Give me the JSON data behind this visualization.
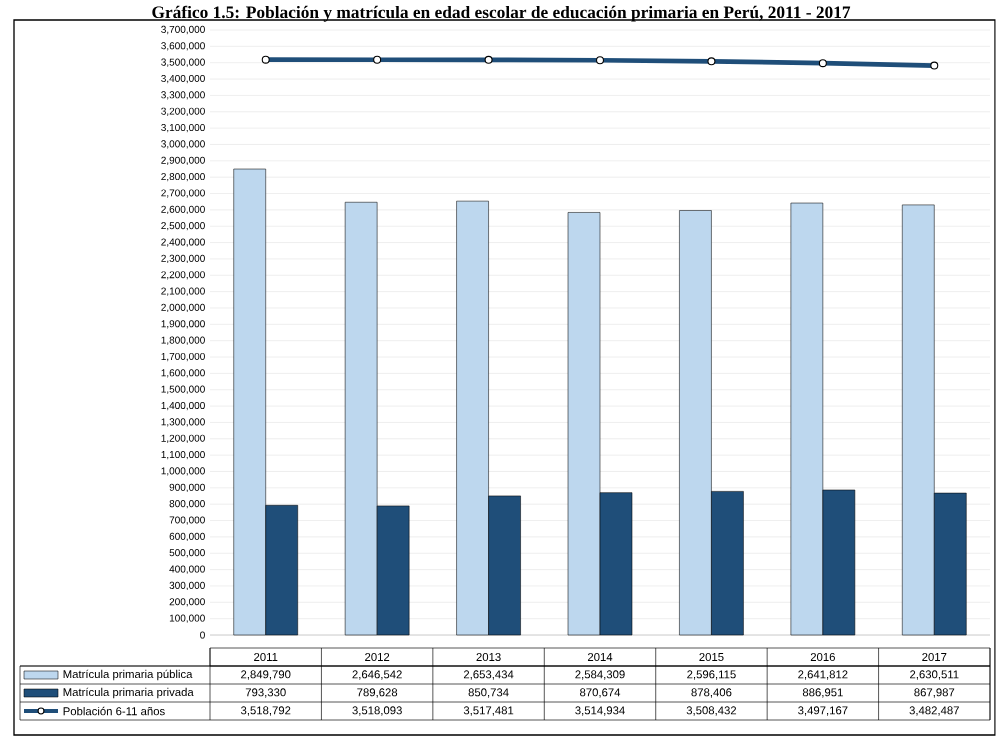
{
  "chart_data": {
    "type": "bar",
    "title": "Gráfico 1.5: Población y matrícula en edad escolar de educación primaria en Perú, 2011 - 2017",
    "categories": [
      "2011",
      "2012",
      "2013",
      "2014",
      "2015",
      "2016",
      "2017"
    ],
    "series": [
      {
        "name": "Matrícula primaria pública",
        "color": "#bdd7ee",
        "values": [
          2849790,
          2646542,
          2653434,
          2584309,
          2596115,
          2641812,
          2630511
        ],
        "value_labels": [
          "2,849,790",
          "2,646,542",
          "2,653,434",
          "2,584,309",
          "2,596,115",
          "2,641,812",
          "2,630,511"
        ]
      },
      {
        "name": "Matrícula primaria privada",
        "color": "#1f4e79",
        "values": [
          793330,
          789628,
          850734,
          870674,
          878406,
          886951,
          867987
        ],
        "value_labels": [
          "793,330",
          "789,628",
          "850,734",
          "870,674",
          "878,406",
          "886,951",
          "867,987"
        ]
      },
      {
        "name": "Población  6-11 años",
        "type": "line",
        "color": "#1f4e79",
        "marker": "circle",
        "line_style": "solid",
        "values": [
          3518792,
          3518093,
          3517481,
          3514934,
          3508432,
          3497167,
          3482487
        ],
        "value_labels": [
          "3,518,792",
          "3,518,093",
          "3,517,481",
          "3,514,934",
          "3,508,432",
          "3,497,167",
          "3,482,487"
        ]
      }
    ],
    "ylim": [
      0,
      3700000
    ],
    "yticks": [
      {
        "value": 0,
        "label": "0"
      },
      {
        "value": 100000,
        "label": "100,000"
      },
      {
        "value": 200000,
        "label": "200,000"
      },
      {
        "value": 300000,
        "label": "300,000"
      },
      {
        "value": 400000,
        "label": "400,000"
      },
      {
        "value": 500000,
        "label": "500,000"
      },
      {
        "value": 600000,
        "label": "600,000"
      },
      {
        "value": 700000,
        "label": "700,000"
      },
      {
        "value": 800000,
        "label": "800,000"
      },
      {
        "value": 900000,
        "label": "900,000"
      },
      {
        "value": 1000000,
        "label": "1,000,000"
      },
      {
        "value": 1100000,
        "label": "1,100,000"
      },
      {
        "value": 1200000,
        "label": "1,200,000"
      },
      {
        "value": 1300000,
        "label": "1,300,000"
      },
      {
        "value": 1400000,
        "label": "1,400,000"
      },
      {
        "value": 1500000,
        "label": "1,500,000"
      },
      {
        "value": 1600000,
        "label": "1,600,000"
      },
      {
        "value": 1700000,
        "label": "1,700,000"
      },
      {
        "value": 1800000,
        "label": "1,800,000"
      },
      {
        "value": 1900000,
        "label": "1,900,000"
      },
      {
        "value": 2000000,
        "label": "2,000,000"
      },
      {
        "value": 2100000,
        "label": "2,100,000"
      },
      {
        "value": 2200000,
        "label": "2,200,000"
      },
      {
        "value": 2300000,
        "label": "2,300,000"
      },
      {
        "value": 2400000,
        "label": "2,400,000"
      },
      {
        "value": 2500000,
        "label": "2,500,000"
      },
      {
        "value": 2600000,
        "label": "2,600,000"
      },
      {
        "value": 2700000,
        "label": "2,700,000"
      },
      {
        "value": 2800000,
        "label": "2,800,000"
      },
      {
        "value": 2900000,
        "label": "2,900,000"
      },
      {
        "value": 3000000,
        "label": "3,000,000"
      },
      {
        "value": 3100000,
        "label": "3,100,000"
      },
      {
        "value": 3200000,
        "label": "3,200,000"
      },
      {
        "value": 3300000,
        "label": "3,300,000"
      },
      {
        "value": 3400000,
        "label": "3,400,000"
      },
      {
        "value": 3500000,
        "label": "3,500,000"
      },
      {
        "value": 3600000,
        "label": "3,600,000"
      },
      {
        "value": 3700000,
        "label": "3,700,000"
      }
    ],
    "grid": "y",
    "legend": "bottom",
    "tick_labels": "y"
  }
}
